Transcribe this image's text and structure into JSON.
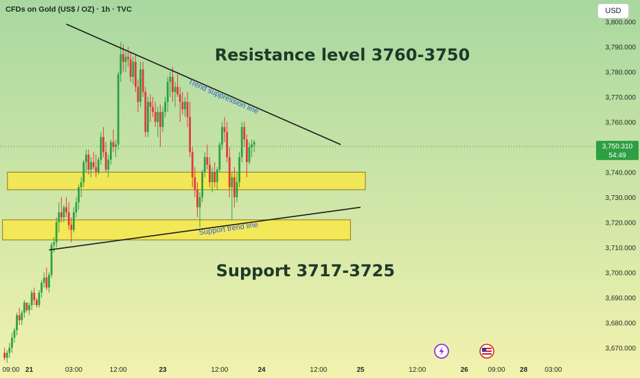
{
  "header": {
    "symbol_title": "CFDs on Gold (US$ / OZ) · 1h · TVC",
    "currency_button": "USD"
  },
  "price_label": {
    "price": "3,750.310",
    "countdown": "54:49"
  },
  "colors": {
    "background_top": "#a8d8a0",
    "background_bottom": "#f2f2ae",
    "bull": "#2ea043",
    "bear": "#e03a3a",
    "zone_fill": "#f7e84a",
    "zone_border": "#8a7a10",
    "price_badge": "#2ea043",
    "annotation_text": "#1e3a28",
    "line_label_text": "#3060d0"
  },
  "icons": {
    "bolt": "lightning-icon",
    "flag": "us-flag-icon"
  },
  "chart_data": {
    "type": "candlestick",
    "title": "",
    "y_axis": {
      "ticks": [
        3800,
        3790,
        3780,
        3770,
        3760,
        3750,
        3740,
        3730,
        3720,
        3710,
        3700,
        3690,
        3680,
        3670
      ],
      "tick_labels": [
        "3,800.000",
        "3,790.000",
        "3,780.000",
        "3,770.000",
        "3,760.000",
        "3,750.000",
        "3,740.000",
        "3,730.000",
        "3,720.000",
        "3,710.000",
        "3,700.000",
        "3,690.000",
        "3,680.000",
        "3,670.000"
      ],
      "range": [
        3664,
        3806
      ]
    },
    "x_axis": {
      "tick_labels": [
        "09:00",
        "21",
        "03:00",
        "12:00",
        "23",
        "12:00",
        "24",
        "12:00",
        "25",
        "12:00",
        "26",
        "09:00",
        "28",
        "03:00"
      ],
      "tick_positions": [
        0,
        11,
        29,
        47,
        65,
        88,
        105,
        128,
        145,
        168,
        187,
        200,
        211,
        223
      ]
    },
    "candles_start_index": 1,
    "candles": [
      [
        3668,
        3670,
        3665,
        3666
      ],
      [
        3666,
        3669,
        3664,
        3668
      ],
      [
        3668,
        3672,
        3666,
        3670
      ],
      [
        3670,
        3676,
        3668,
        3674
      ],
      [
        3674,
        3678,
        3672,
        3677
      ],
      [
        3677,
        3684,
        3675,
        3683
      ],
      [
        3683,
        3686,
        3679,
        3681
      ],
      [
        3681,
        3685,
        3679,
        3684
      ],
      [
        3684,
        3689,
        3682,
        3688
      ],
      [
        3688,
        3688,
        3684,
        3685
      ],
      [
        3685,
        3688,
        3683,
        3687
      ],
      [
        3687,
        3693,
        3685,
        3692
      ],
      [
        3692,
        3694,
        3687,
        3689
      ],
      [
        3689,
        3690,
        3686,
        3687
      ],
      [
        3687,
        3693,
        3686,
        3692
      ],
      [
        3692,
        3697,
        3690,
        3696
      ],
      [
        3696,
        3700,
        3694,
        3698
      ],
      [
        3698,
        3702,
        3693,
        3694
      ],
      [
        3694,
        3700,
        3692,
        3699
      ],
      [
        3699,
        3712,
        3698,
        3711
      ],
      [
        3711,
        3714,
        3708,
        3712
      ],
      [
        3712,
        3722,
        3710,
        3720
      ],
      [
        3720,
        3728,
        3716,
        3724
      ],
      [
        3724,
        3730,
        3720,
        3722
      ],
      [
        3722,
        3727,
        3720,
        3726
      ],
      [
        3726,
        3730,
        3722,
        3724
      ],
      [
        3724,
        3728,
        3717,
        3719
      ],
      [
        3719,
        3722,
        3712,
        3717
      ],
      [
        3717,
        3726,
        3716,
        3724
      ],
      [
        3724,
        3730,
        3722,
        3728
      ],
      [
        3728,
        3735,
        3725,
        3734
      ],
      [
        3734,
        3738,
        3730,
        3736
      ],
      [
        3736,
        3745,
        3734,
        3744
      ],
      [
        3744,
        3749,
        3740,
        3747
      ],
      [
        3747,
        3749,
        3739,
        3741
      ],
      [
        3741,
        3746,
        3738,
        3744
      ],
      [
        3744,
        3748,
        3741,
        3742
      ],
      [
        3742,
        3747,
        3738,
        3740
      ],
      [
        3740,
        3746,
        3739,
        3745
      ],
      [
        3745,
        3756,
        3743,
        3754
      ],
      [
        3754,
        3758,
        3746,
        3748
      ],
      [
        3748,
        3752,
        3740,
        3741
      ],
      [
        3741,
        3747,
        3738,
        3745
      ],
      [
        3745,
        3753,
        3743,
        3752
      ],
      [
        3752,
        3757,
        3748,
        3750
      ],
      [
        3750,
        3753,
        3746,
        3751
      ],
      [
        3751,
        3780,
        3749,
        3779
      ],
      [
        3779,
        3792,
        3776,
        3787
      ],
      [
        3787,
        3791,
        3780,
        3784
      ],
      [
        3784,
        3788,
        3780,
        3786
      ],
      [
        3786,
        3790,
        3782,
        3785
      ],
      [
        3785,
        3788,
        3776,
        3778
      ],
      [
        3778,
        3786,
        3775,
        3784
      ],
      [
        3784,
        3787,
        3772,
        3774
      ],
      [
        3774,
        3777,
        3764,
        3768
      ],
      [
        3768,
        3784,
        3766,
        3781
      ],
      [
        3781,
        3784,
        3770,
        3772
      ],
      [
        3772,
        3774,
        3754,
        3756
      ],
      [
        3756,
        3770,
        3754,
        3768
      ],
      [
        3768,
        3771,
        3760,
        3766
      ],
      [
        3766,
        3770,
        3762,
        3764
      ],
      [
        3764,
        3768,
        3758,
        3760
      ],
      [
        3760,
        3766,
        3754,
        3764
      ],
      [
        3764,
        3767,
        3750,
        3758
      ],
      [
        3758,
        3766,
        3756,
        3764
      ],
      [
        3764,
        3770,
        3762,
        3768
      ],
      [
        3768,
        3778,
        3764,
        3776
      ],
      [
        3776,
        3780,
        3770,
        3778
      ],
      [
        3778,
        3782,
        3768,
        3772
      ],
      [
        3772,
        3776,
        3766,
        3774
      ],
      [
        3774,
        3779,
        3770,
        3771
      ],
      [
        3771,
        3774,
        3760,
        3768
      ],
      [
        3768,
        3772,
        3763,
        3765
      ],
      [
        3765,
        3770,
        3762,
        3768
      ],
      [
        3768,
        3772,
        3758,
        3762
      ],
      [
        3762,
        3768,
        3746,
        3748
      ],
      [
        3748,
        3750,
        3734,
        3738
      ],
      [
        3738,
        3742,
        3730,
        3733
      ],
      [
        3733,
        3736,
        3722,
        3726
      ],
      [
        3726,
        3732,
        3718,
        3730
      ],
      [
        3730,
        3741,
        3728,
        3740
      ],
      [
        3740,
        3748,
        3738,
        3746
      ],
      [
        3746,
        3751,
        3741,
        3743
      ],
      [
        3743,
        3746,
        3734,
        3736
      ],
      [
        3736,
        3742,
        3732,
        3740
      ],
      [
        3740,
        3744,
        3734,
        3736
      ],
      [
        3736,
        3742,
        3733,
        3741
      ],
      [
        3741,
        3752,
        3740,
        3751
      ],
      [
        3751,
        3760,
        3749,
        3758
      ],
      [
        3758,
        3762,
        3752,
        3756
      ],
      [
        3756,
        3760,
        3744,
        3746
      ],
      [
        3746,
        3750,
        3730,
        3734
      ],
      [
        3734,
        3740,
        3721,
        3738
      ],
      [
        3738,
        3742,
        3726,
        3730
      ],
      [
        3730,
        3740,
        3728,
        3736
      ],
      [
        3736,
        3748,
        3734,
        3746
      ],
      [
        3746,
        3760,
        3744,
        3758
      ],
      [
        3758,
        3760,
        3750,
        3753
      ],
      [
        3753,
        3755,
        3738,
        3744
      ],
      [
        3744,
        3752,
        3743,
        3750
      ],
      [
        3750,
        3753,
        3746,
        3751
      ],
      [
        3751,
        3753,
        3748,
        3752
      ]
    ],
    "lines": [
      {
        "name": "Trend suppression line",
        "from": [
          26,
          3799
        ],
        "to": [
          137,
          3751
        ]
      },
      {
        "name": "Support trend line",
        "from": [
          19,
          3709
        ],
        "to": [
          145,
          3726
        ]
      }
    ],
    "zones": [
      {
        "low": 3733,
        "high": 3740,
        "from": [
          3,
          145
        ]
      },
      {
        "low": 3713,
        "high": 3721,
        "from": [
          1,
          139
        ]
      }
    ],
    "annotations": [
      {
        "text": "Resistance level 3760-3750",
        "x": 86,
        "y": 3787
      },
      {
        "text": "Support 3717-3725",
        "x": 81,
        "y": 3701
      }
    ],
    "last_price": 3750.31
  }
}
